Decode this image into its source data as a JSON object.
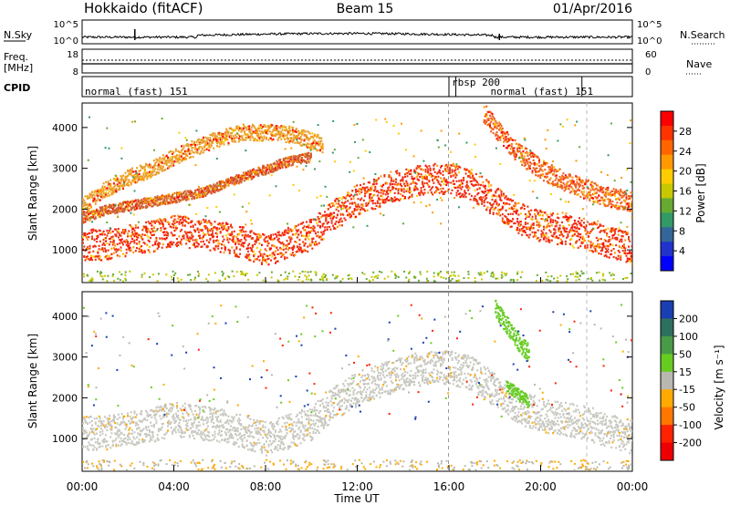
{
  "header": {
    "title": "Hokkaido (fitACF)",
    "beam": "Beam 15",
    "date": "01/Apr/2016"
  },
  "strips": {
    "nsky_label": "N.Sky",
    "nsky_ticks": [
      "10^5",
      "10^0"
    ],
    "nsearch_label": "N.Search",
    "freq_label": "Freq.",
    "freq_unit": "[MHz]",
    "freq_ticks": [
      "18",
      "8"
    ],
    "nave_label": "Nave",
    "nave_ticks": [
      "60",
      "0"
    ],
    "cpid_label": "CPID",
    "cpid_segments": [
      {
        "label": "normal (fast) 151",
        "start_hour": 0,
        "end_hour": 16
      },
      {
        "label": "rbsp 200",
        "start_hour": 16,
        "end_hour": 16.3
      },
      {
        "label": "normal (fast) 151",
        "start_hour": 16.3,
        "end_hour": 21.8
      }
    ]
  },
  "chart_data": [
    {
      "type": "heatmap",
      "name": "power-panel",
      "ylabel": "Slant Range [km]",
      "yticks": [
        1000,
        2000,
        3000,
        4000
      ],
      "ylim": [
        200,
        4600
      ],
      "xlim": [
        0,
        24
      ],
      "colorbar_label": "Power [dB]",
      "colorbar_ticks": [
        "28",
        "24",
        "20",
        "16",
        "12",
        "8",
        "4"
      ],
      "colorbar_colors": [
        "#ff0000",
        "#ff3300",
        "#ff6600",
        "#ff9900",
        "#ffcc00",
        "#c8c800",
        "#66aa33",
        "#339966",
        "#336699",
        "#2233cc",
        "#0000ff"
      ],
      "echo_bands": [
        {
          "name": "main",
          "points": [
            [
              0,
              1150
            ],
            [
              1,
              1150
            ],
            [
              2,
              1250
            ],
            [
              3,
              1350
            ],
            [
              4,
              1500
            ],
            [
              5,
              1420
            ],
            [
              6,
              1350
            ],
            [
              7,
              1200
            ],
            [
              8,
              1000
            ],
            [
              9,
              1200
            ],
            [
              10,
              1400
            ],
            [
              11,
              1900
            ],
            [
              12,
              2250
            ],
            [
              13,
              2450
            ],
            [
              14,
              2650
            ],
            [
              15,
              2750
            ],
            [
              16,
              2780
            ],
            [
              17,
              2600
            ],
            [
              18,
              2200
            ],
            [
              19,
              1800
            ],
            [
              20,
              1600
            ],
            [
              21,
              1500
            ],
            [
              22,
              1400
            ],
            [
              23,
              1200
            ],
            [
              24,
              1050
            ]
          ],
          "width": 380,
          "color": "#f03010"
        },
        {
          "name": "upper-left",
          "points": [
            [
              0,
              2100
            ],
            [
              1,
              2500
            ],
            [
              2,
              2800
            ],
            [
              3,
              3000
            ],
            [
              4,
              3300
            ],
            [
              5,
              3550
            ],
            [
              6,
              3750
            ],
            [
              7,
              3900
            ],
            [
              8,
              3900
            ],
            [
              9,
              3850
            ],
            [
              10,
              3700
            ],
            [
              10.5,
              3600
            ]
          ],
          "width": 200,
          "color": "#e8a030"
        },
        {
          "name": "mid-left",
          "points": [
            [
              0,
              1800
            ],
            [
              1,
              2000
            ],
            [
              2,
              2100
            ],
            [
              3,
              2200
            ],
            [
              4,
              2300
            ],
            [
              5,
              2400
            ],
            [
              6,
              2600
            ],
            [
              7,
              2800
            ],
            [
              8,
              3000
            ],
            [
              9,
              3200
            ],
            [
              10,
              3300
            ]
          ],
          "width": 120,
          "color": "#d06030"
        },
        {
          "name": "upper-right",
          "points": [
            [
              17.5,
              4400
            ],
            [
              18,
              4000
            ],
            [
              19,
              3400
            ],
            [
              20,
              3000
            ],
            [
              21,
              2700
            ],
            [
              22,
              2500
            ],
            [
              23,
              2300
            ],
            [
              24,
              2200
            ]
          ],
          "width": 250,
          "color": "#f06020"
        }
      ]
    },
    {
      "type": "heatmap",
      "name": "velocity-panel",
      "ylabel": "Slant Range [km]",
      "yticks": [
        1000,
        2000,
        3000,
        4000
      ],
      "ylim": [
        200,
        4600
      ],
      "xlim": [
        0,
        24
      ],
      "xticks": [
        "00:00",
        "04:00",
        "08:00",
        "12:00",
        "16:00",
        "20:00",
        "00:00"
      ],
      "xlabel": "Time UT",
      "colorbar_label": "Velocity [m s⁻¹]",
      "colorbar_ticks": [
        "200",
        "100",
        "50",
        "15",
        "-15",
        "-50",
        "-100",
        "-200"
      ],
      "colorbar_colors": [
        "#1a3fb0",
        "#2e7060",
        "#4a9a48",
        "#66cc22",
        "#b8b8b0",
        "#ffaa00",
        "#ff7700",
        "#ff2200",
        "#ee0000"
      ],
      "echo_bands": [
        {
          "name": "main",
          "points": [
            [
              0,
              1150
            ],
            [
              1,
              1150
            ],
            [
              2,
              1250
            ],
            [
              3,
              1350
            ],
            [
              4,
              1500
            ],
            [
              5,
              1420
            ],
            [
              6,
              1350
            ],
            [
              7,
              1200
            ],
            [
              8,
              1000
            ],
            [
              9,
              1200
            ],
            [
              10,
              1400
            ],
            [
              11,
              1900
            ],
            [
              12,
              2250
            ],
            [
              13,
              2450
            ],
            [
              14,
              2650
            ],
            [
              15,
              2750
            ],
            [
              16,
              2780
            ],
            [
              17,
              2600
            ],
            [
              18,
              2200
            ],
            [
              19,
              1800
            ],
            [
              20,
              1600
            ],
            [
              21,
              1500
            ],
            [
              22,
              1400
            ],
            [
              23,
              1200
            ],
            [
              24,
              1050
            ]
          ],
          "width": 420,
          "color": "#c8c8c0"
        },
        {
          "name": "upper-right-green",
          "points": [
            [
              18,
              4200
            ],
            [
              18.5,
              3800
            ],
            [
              19,
              3400
            ],
            [
              19.5,
              3100
            ]
          ],
          "width": 220,
          "color": "#66cc22"
        },
        {
          "name": "mid-right-green",
          "points": [
            [
              18.5,
              2300
            ],
            [
              19,
              2100
            ],
            [
              19.5,
              1900
            ]
          ],
          "width": 150,
          "color": "#66cc22"
        }
      ]
    }
  ]
}
